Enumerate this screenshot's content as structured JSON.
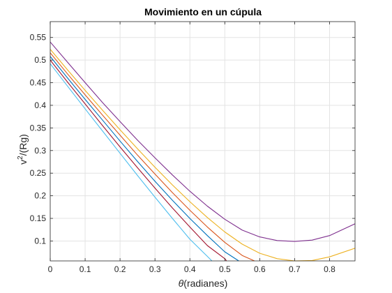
{
  "chart_data": {
    "type": "line",
    "title": "Movimiento en un cúpula",
    "xlabel": {
      "symbol": "θ",
      "text": "(radianes)"
    },
    "ylabel": {
      "prefix": "v",
      "sup": "2",
      "suffix": "/(Rg)"
    },
    "xlim": [
      0,
      0.873
    ],
    "ylim": [
      0.056,
      0.585
    ],
    "xticks": [
      0,
      0.1,
      0.2,
      0.3,
      0.4,
      0.5,
      0.6,
      0.7,
      0.8
    ],
    "xtick_labels": [
      "0",
      "0.1",
      "0.2",
      "0.3",
      "0.4",
      "0.5",
      "0.6",
      "0.7",
      "0.8"
    ],
    "yticks": [
      0.1,
      0.15,
      0.2,
      0.25,
      0.3,
      0.35,
      0.4,
      0.45,
      0.5,
      0.55
    ],
    "ytick_labels": [
      "0.1",
      "0.15",
      "0.2",
      "0.25",
      "0.3",
      "0.35",
      "0.4",
      "0.45",
      "0.5",
      "0.55"
    ],
    "grid": true,
    "series": [
      {
        "color": "#4DBEEE",
        "x": [
          0,
          0.05,
          0.1,
          0.15,
          0.2,
          0.25,
          0.3,
          0.35,
          0.4,
          0.45,
          0.463
        ],
        "y": [
          0.492,
          0.442,
          0.392,
          0.343,
          0.294,
          0.245,
          0.197,
          0.15,
          0.104,
          0.066,
          0.056
        ]
      },
      {
        "color": "#A2142F",
        "x": [
          0,
          0.05,
          0.1,
          0.15,
          0.2,
          0.25,
          0.3,
          0.35,
          0.4,
          0.45,
          0.5,
          0.505
        ],
        "y": [
          0.5,
          0.451,
          0.403,
          0.355,
          0.308,
          0.262,
          0.217,
          0.173,
          0.131,
          0.09,
          0.061,
          0.056
        ]
      },
      {
        "color": "#0072BD",
        "x": [
          0,
          0.05,
          0.1,
          0.15,
          0.2,
          0.25,
          0.3,
          0.35,
          0.4,
          0.45,
          0.5,
          0.54
        ],
        "y": [
          0.508,
          0.46,
          0.413,
          0.367,
          0.321,
          0.276,
          0.232,
          0.19,
          0.15,
          0.112,
          0.076,
          0.056
        ]
      },
      {
        "color": "#D95319",
        "x": [
          0,
          0.05,
          0.1,
          0.15,
          0.2,
          0.25,
          0.3,
          0.35,
          0.4,
          0.45,
          0.5,
          0.55,
          0.585
        ],
        "y": [
          0.516,
          0.469,
          0.423,
          0.378,
          0.334,
          0.29,
          0.248,
          0.207,
          0.168,
          0.131,
          0.097,
          0.068,
          0.056
        ]
      },
      {
        "color": "#EDB120",
        "x": [
          0,
          0.05,
          0.1,
          0.15,
          0.2,
          0.25,
          0.3,
          0.35,
          0.4,
          0.45,
          0.5,
          0.55,
          0.6,
          0.65,
          0.7,
          0.75,
          0.8,
          0.873
        ],
        "y": [
          0.524,
          0.478,
          0.433,
          0.389,
          0.346,
          0.304,
          0.263,
          0.224,
          0.187,
          0.152,
          0.12,
          0.093,
          0.073,
          0.061,
          0.056,
          0.057,
          0.065,
          0.084
        ]
      },
      {
        "color": "#7E2F8E",
        "x": [
          0,
          0.05,
          0.1,
          0.15,
          0.2,
          0.25,
          0.3,
          0.35,
          0.4,
          0.45,
          0.5,
          0.55,
          0.6,
          0.65,
          0.7,
          0.75,
          0.8,
          0.873
        ],
        "y": [
          0.54,
          0.495,
          0.45,
          0.406,
          0.364,
          0.323,
          0.284,
          0.246,
          0.21,
          0.177,
          0.148,
          0.124,
          0.109,
          0.101,
          0.099,
          0.102,
          0.112,
          0.138
        ]
      }
    ]
  }
}
